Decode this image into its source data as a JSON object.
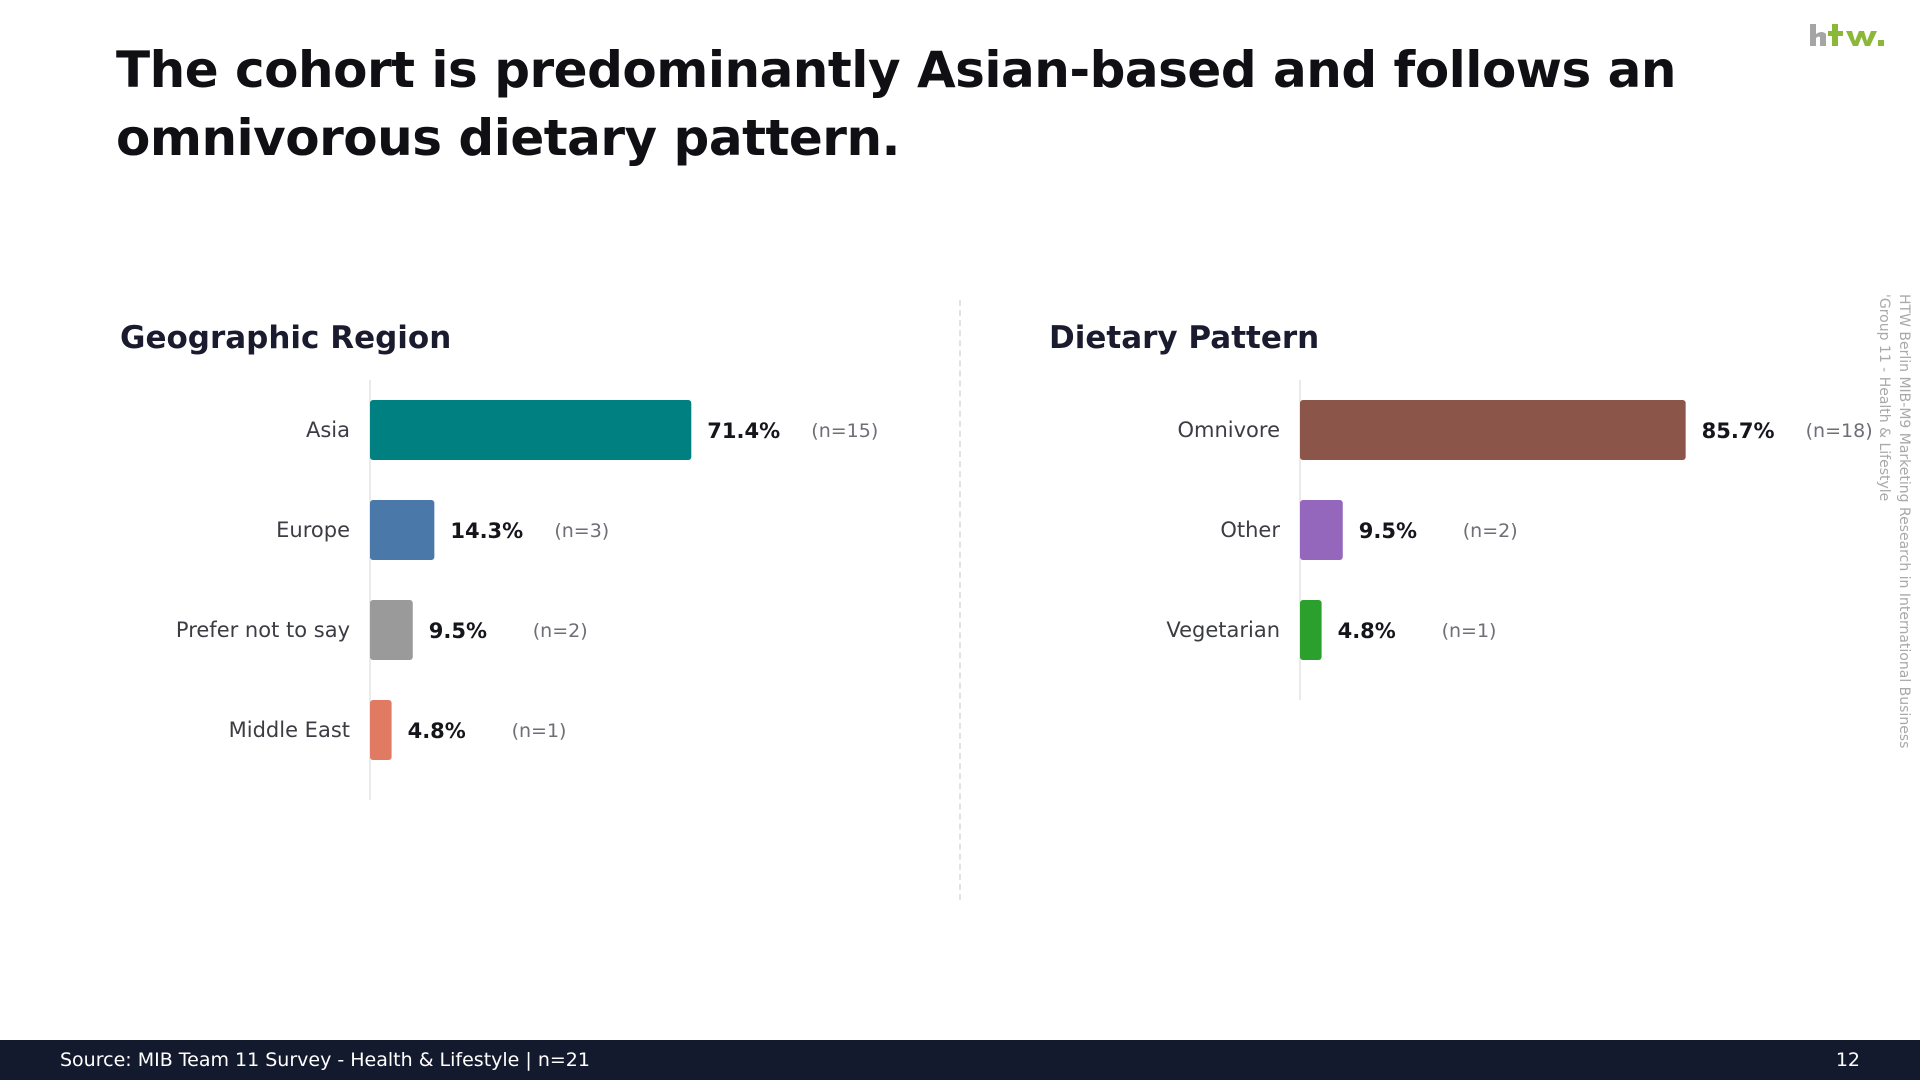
{
  "slide": {
    "title": "The cohort is predominantly Asian-based and follows an omnivorous dietary pattern.",
    "side_note_line1": "HTW Berlin MIB-M9 Marketing Research in International Business",
    "side_note_line2": "'Group 11 - Health & Lifestyle",
    "logo_icon": "htw-logo-icon",
    "logo_color": "#8cb83a",
    "footer": {
      "source": "Source: MIB Team 11 Survey - Health & Lifestyle | n=21",
      "page_number": "12"
    }
  },
  "chart_data": [
    {
      "type": "bar",
      "orientation": "horizontal",
      "title": "Geographic Region",
      "categories": [
        "Asia",
        "Europe",
        "Prefer not to say",
        "Middle East"
      ],
      "values": [
        71.4,
        14.3,
        9.5,
        4.8
      ],
      "value_labels": [
        "71.4%",
        "14.3%",
        "9.5%",
        "4.8%"
      ],
      "count_labels": [
        "(n=15)",
        "(n=3)",
        "(n=2)",
        "(n=1)"
      ],
      "colors": [
        "#008080",
        "#4a78a8",
        "#9a9a9a",
        "#e07a62"
      ],
      "xlim": [
        0,
        100
      ],
      "grid": false
    },
    {
      "type": "bar",
      "orientation": "horizontal",
      "title": "Dietary Pattern",
      "categories": [
        "Omnivore",
        "Other",
        "Vegetarian"
      ],
      "values": [
        85.7,
        9.5,
        4.8
      ],
      "value_labels": [
        "85.7%",
        "9.5%",
        "4.8%"
      ],
      "count_labels": [
        "(n=18)",
        "(n=2)",
        "(n=1)"
      ],
      "colors": [
        "#8b5549",
        "#9467bd",
        "#2ca02c"
      ],
      "xlim": [
        0,
        100
      ],
      "grid": false
    }
  ]
}
